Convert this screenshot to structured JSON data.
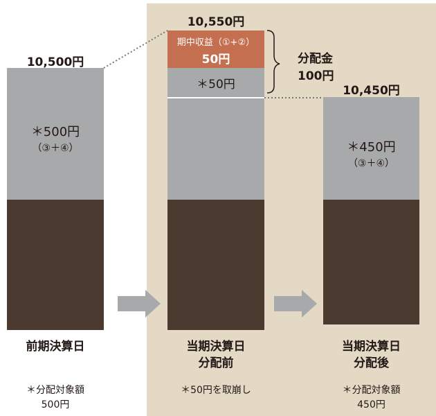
{
  "bars": {
    "previous": {
      "top_value": "10,500円",
      "mid_text": "＊500円",
      "mid_sub": "（③＋④）"
    },
    "current": {
      "top_value": "10,550円",
      "income_label": "期中収益（①+②）",
      "income_value": "50円",
      "reserve_text": "＊50円"
    },
    "after": {
      "top_value": "10,450円",
      "mid_text": "＊450円",
      "mid_sub": "（③＋④）"
    }
  },
  "distribution": {
    "label": "分配金",
    "amount": "100円"
  },
  "columns": [
    {
      "label_line1": "前期決算日",
      "label_line2": "",
      "note_line1": "＊分配対象額",
      "note_line2": "500円"
    },
    {
      "label_line1": "当期決算日",
      "label_line2": "分配前",
      "note_line1": "＊50円を取崩し",
      "note_line2": ""
    },
    {
      "label_line1": "当期決算日",
      "label_line2": "分配後",
      "note_line1": "＊分配対象額",
      "note_line2": "450円"
    }
  ],
  "colors": {
    "panel": "#e3d9c4",
    "gray": "#a8a9ab",
    "dark": "#4b3a2f",
    "income": "#c46f4f",
    "arrow": "#a8a9ab"
  }
}
